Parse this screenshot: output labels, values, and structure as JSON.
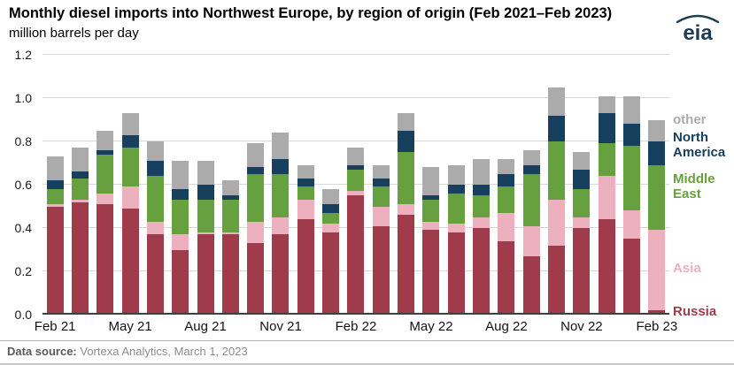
{
  "header": {
    "title": "Monthly diesel imports into Northwest Europe, by region of origin (Feb 2021–Feb 2023)",
    "subtitle": "million barrels per day",
    "logo_text": "eia"
  },
  "footer": {
    "source_label": "Data source:",
    "source_text": " Vortexa Analytics, March 1, 2023"
  },
  "colors": {
    "russia": "#a03b4c",
    "asia": "#ecb0bf",
    "middle_east": "#67a03e",
    "north_america": "#17405f",
    "other": "#ababab",
    "logo": "#1d3d55",
    "gridline": "#d9d9d9"
  },
  "chart_data": {
    "type": "bar",
    "stacked": true,
    "title": "Monthly diesel imports into Northwest Europe, by region of origin (Feb 2021–Feb 2023)",
    "ylabel": "million barrels per day",
    "xlabel": "",
    "ylim": [
      0,
      1.2
    ],
    "yticks": [
      0,
      0.2,
      0.4,
      0.6,
      0.8,
      1.0,
      1.2
    ],
    "grid": "horizontal",
    "legend_position": "right",
    "categories": [
      "Feb 2021",
      "Mar 2021",
      "Apr 2021",
      "May 2021",
      "Jun 2021",
      "Jul 2021",
      "Aug 2021",
      "Sep 2021",
      "Oct 2021",
      "Nov 2021",
      "Dec 2021",
      "Jan 2022",
      "Feb 2022",
      "Mar 2022",
      "Apr 2022",
      "May 2022",
      "Jun 2022",
      "Jul 2022",
      "Aug 2022",
      "Sep 2022",
      "Oct 2022",
      "Nov 2022",
      "Dec 2022",
      "Jan 2023",
      "Feb 2023"
    ],
    "x_tick_labels": [
      "Feb 21",
      "May 21",
      "Aug 21",
      "Nov 21",
      "Feb 22",
      "May 22",
      "Aug 22",
      "Nov 22",
      "Feb 23"
    ],
    "x_tick_indices": [
      0,
      3,
      6,
      9,
      12,
      15,
      18,
      21,
      24
    ],
    "series": [
      {
        "name": "Russia",
        "color_key": "russia",
        "values": [
          0.5,
          0.52,
          0.51,
          0.49,
          0.37,
          0.3,
          0.37,
          0.37,
          0.33,
          0.37,
          0.44,
          0.38,
          0.55,
          0.41,
          0.46,
          0.39,
          0.38,
          0.4,
          0.34,
          0.27,
          0.32,
          0.4,
          0.44,
          0.35,
          0.02
        ]
      },
      {
        "name": "Asia",
        "color_key": "asia",
        "values": [
          0.01,
          0.01,
          0.05,
          0.1,
          0.06,
          0.07,
          0.01,
          0.01,
          0.1,
          0.08,
          0.09,
          0.04,
          0.02,
          0.09,
          0.05,
          0.04,
          0.04,
          0.05,
          0.13,
          0.14,
          0.21,
          0.05,
          0.2,
          0.13,
          0.37
        ]
      },
      {
        "name": "Middle East",
        "color_key": "middle_east",
        "values": [
          0.07,
          0.1,
          0.18,
          0.18,
          0.21,
          0.16,
          0.15,
          0.15,
          0.22,
          0.2,
          0.06,
          0.05,
          0.1,
          0.09,
          0.24,
          0.1,
          0.14,
          0.1,
          0.12,
          0.24,
          0.27,
          0.13,
          0.15,
          0.3,
          0.3
        ]
      },
      {
        "name": "North America",
        "color_key": "north_america",
        "values": [
          0.04,
          0.03,
          0.02,
          0.06,
          0.07,
          0.05,
          0.07,
          0.02,
          0.03,
          0.07,
          0.04,
          0.04,
          0.02,
          0.04,
          0.1,
          0.02,
          0.04,
          0.05,
          0.06,
          0.04,
          0.12,
          0.09,
          0.14,
          0.1,
          0.11
        ]
      },
      {
        "name": "other",
        "color_key": "other",
        "values": [
          0.11,
          0.11,
          0.09,
          0.1,
          0.09,
          0.13,
          0.11,
          0.07,
          0.11,
          0.12,
          0.06,
          0.07,
          0.08,
          0.06,
          0.08,
          0.13,
          0.09,
          0.12,
          0.07,
          0.07,
          0.13,
          0.08,
          0.08,
          0.13,
          0.1
        ]
      }
    ],
    "legend": [
      {
        "label": "other",
        "color_key": "other"
      },
      {
        "label": "North America",
        "color_key": "north_america"
      },
      {
        "label": "Middle East",
        "color_key": "middle_east"
      },
      {
        "label": "Asia",
        "color_key": "asia"
      },
      {
        "label": "Russia",
        "color_key": "russia"
      }
    ]
  }
}
